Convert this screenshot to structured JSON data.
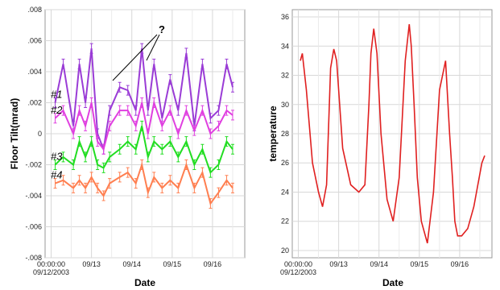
{
  "chart_data": [
    {
      "type": "line",
      "xlabel": "Date",
      "ylabel": "Floor Tilt(mrad)",
      "x_tick_labels": [
        "00:00:00",
        "09/12/2003",
        "09/13",
        "09/14",
        "09/15",
        "09/16"
      ],
      "x_ticks_days": [
        0,
        1,
        2,
        3,
        4
      ],
      "xlim_days": [
        -0.15,
        4.8
      ],
      "ylim": [
        -0.008,
        0.008
      ],
      "y_ticks": [
        ".008",
        ".006",
        ".004",
        ".002",
        "0",
        "-.002",
        "-.004",
        "-.006",
        "-.008"
      ],
      "grid": true,
      "annotation": "?",
      "series": [
        {
          "name": "#1",
          "color": "#9a3cd6",
          "x": [
            0.1,
            0.3,
            0.55,
            0.7,
            0.85,
            1.0,
            1.15,
            1.3,
            1.45,
            1.7,
            1.9,
            2.1,
            2.25,
            2.4,
            2.55,
            2.75,
            2.95,
            3.15,
            3.35,
            3.55,
            3.75,
            3.95,
            4.15,
            4.35,
            4.5
          ],
          "y": [
            0.002,
            0.0045,
            0.0005,
            0.0045,
            0.002,
            0.0055,
            0.0,
            -0.001,
            0.0015,
            0.003,
            0.0028,
            0.0015,
            0.0055,
            0.0015,
            0.0045,
            0.001,
            0.0035,
            0.0015,
            0.0052,
            0.0005,
            0.0045,
            0.001,
            0.0015,
            0.0045,
            0.003
          ]
        },
        {
          "name": "#2",
          "color": "#e040e0",
          "x": [
            0.1,
            0.3,
            0.55,
            0.7,
            0.85,
            1.0,
            1.15,
            1.3,
            1.45,
            1.7,
            1.9,
            2.1,
            2.25,
            2.4,
            2.55,
            2.75,
            2.95,
            3.15,
            3.35,
            3.55,
            3.75,
            3.95,
            4.15,
            4.35,
            4.5
          ],
          "y": [
            0.001,
            0.0015,
            0.0,
            0.0015,
            0.0005,
            0.002,
            -0.0005,
            -0.001,
            0.0005,
            0.0015,
            0.0015,
            0.0005,
            0.002,
            0.0,
            0.002,
            0.0005,
            0.0015,
            0.0,
            0.0015,
            0.0002,
            0.0015,
            0.0,
            0.0005,
            0.0015,
            0.0012
          ]
        },
        {
          "name": "#3",
          "color": "#22dd22",
          "x": [
            0.1,
            0.3,
            0.55,
            0.7,
            0.85,
            1.0,
            1.15,
            1.3,
            1.45,
            1.7,
            1.9,
            2.1,
            2.25,
            2.4,
            2.55,
            2.75,
            2.95,
            3.15,
            3.35,
            3.55,
            3.75,
            3.95,
            4.15,
            4.35,
            4.5
          ],
          "y": [
            -0.002,
            -0.0015,
            -0.002,
            -0.0005,
            -0.0015,
            -0.0005,
            -0.002,
            -0.0022,
            -0.0015,
            -0.001,
            -0.0005,
            -0.001,
            0.0005,
            -0.0015,
            -0.0005,
            -0.001,
            -0.0005,
            -0.0015,
            -0.0005,
            -0.002,
            -0.001,
            -0.0025,
            -0.002,
            -0.0005,
            -0.001
          ]
        },
        {
          "name": "#4",
          "color": "#ff7f50",
          "x": [
            0.1,
            0.3,
            0.55,
            0.7,
            0.85,
            1.0,
            1.15,
            1.3,
            1.45,
            1.7,
            1.9,
            2.1,
            2.25,
            2.4,
            2.55,
            2.75,
            2.95,
            3.15,
            3.35,
            3.55,
            3.75,
            3.95,
            4.15,
            4.35,
            4.5
          ],
          "y": [
            -0.0032,
            -0.003,
            -0.0035,
            -0.003,
            -0.0035,
            -0.0028,
            -0.0035,
            -0.004,
            -0.0032,
            -0.0028,
            -0.0025,
            -0.0032,
            -0.002,
            -0.0038,
            -0.0028,
            -0.0035,
            -0.003,
            -0.0035,
            -0.002,
            -0.0035,
            -0.0025,
            -0.0045,
            -0.0038,
            -0.003,
            -0.0035
          ]
        }
      ]
    },
    {
      "type": "line",
      "xlabel": "Date",
      "ylabel": "temperature",
      "x_tick_labels": [
        "00:00:00",
        "09/12/2003",
        "09/13",
        "09/14",
        "09/15",
        "09/16"
      ],
      "x_ticks_days": [
        0,
        1,
        2,
        3,
        4
      ],
      "xlim_days": [
        -0.15,
        4.8
      ],
      "ylim": [
        19.5,
        36.5
      ],
      "y_ticks": [
        "20",
        "22",
        "24",
        "26",
        "28",
        "30",
        "32",
        "34",
        "36"
      ],
      "grid": true,
      "series": [
        {
          "color": "#e02020",
          "x": [
            0.05,
            0.1,
            0.2,
            0.35,
            0.5,
            0.6,
            0.7,
            0.8,
            0.88,
            0.95,
            1.0,
            1.1,
            1.3,
            1.5,
            1.65,
            1.75,
            1.8,
            1.87,
            1.95,
            2.05,
            2.2,
            2.35,
            2.5,
            2.65,
            2.75,
            2.8,
            2.87,
            2.95,
            3.05,
            3.2,
            3.35,
            3.5,
            3.65,
            3.75,
            3.82,
            3.88,
            3.95,
            4.05,
            4.2,
            4.35,
            4.45,
            4.55,
            4.62
          ],
          "y": [
            33.0,
            33.5,
            31.0,
            26.0,
            24.0,
            23.0,
            24.5,
            32.5,
            33.8,
            33.0,
            31.0,
            27.0,
            24.5,
            24.0,
            24.5,
            30.0,
            33.5,
            35.2,
            33.5,
            28.0,
            23.5,
            22.0,
            25.0,
            33.0,
            35.5,
            34.0,
            30.0,
            25.0,
            22.0,
            20.5,
            24.0,
            31.0,
            33.0,
            28.0,
            25.0,
            22.0,
            21.0,
            21.0,
            21.5,
            23.0,
            24.5,
            26.0,
            26.5
          ]
        }
      ]
    }
  ]
}
